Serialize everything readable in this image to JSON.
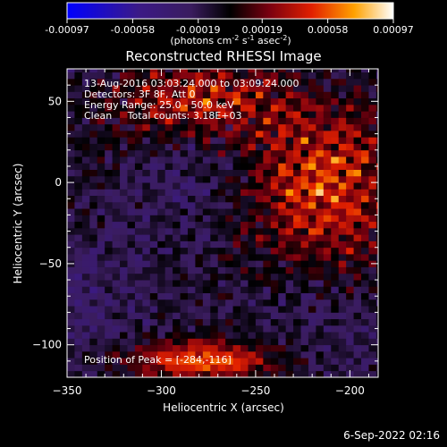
{
  "chart_data": {
    "type": "heatmap",
    "title": "Reconstructed RHESSI Image",
    "xlabel": "Heliocentric X (arcsec)",
    "ylabel": "Heliocentric Y (arcsec)",
    "xlim": [
      -350,
      -185
    ],
    "ylim": [
      -120,
      70
    ],
    "xticks": [
      -350,
      -300,
      -250,
      -200
    ],
    "yticks": [
      -100,
      -50,
      0,
      50
    ],
    "colorbar": {
      "ticks": [
        "-0.00097",
        "-0.00058",
        "-0.00019",
        "0.00019",
        "0.00058",
        "0.00097"
      ],
      "units_prefix": "(photons cm",
      "units_exp1": "-2",
      "units_mid": " s",
      "units_exp2": "-1",
      "units_mid2": " asec",
      "units_exp3": "-2",
      "units_suffix": ")",
      "range": [
        -0.00097,
        0.00097
      ]
    },
    "annotations": [
      "13-Aug-2016 03:03:24.000 to 03:09:24.000",
      "Detectors: 3F 8F, Att 0",
      "Energy Range: 25.0 - 50.0 keV",
      "Clean     Total counts: 3.18E+03"
    ],
    "peak_label": "Position of Peak = [-284,-116]",
    "peak": [
      -284,
      -116
    ]
  },
  "footer": {
    "date": "6-Sep-2022 02:16"
  },
  "colors": {
    "background": "#000000",
    "axis": "#ffffff"
  }
}
